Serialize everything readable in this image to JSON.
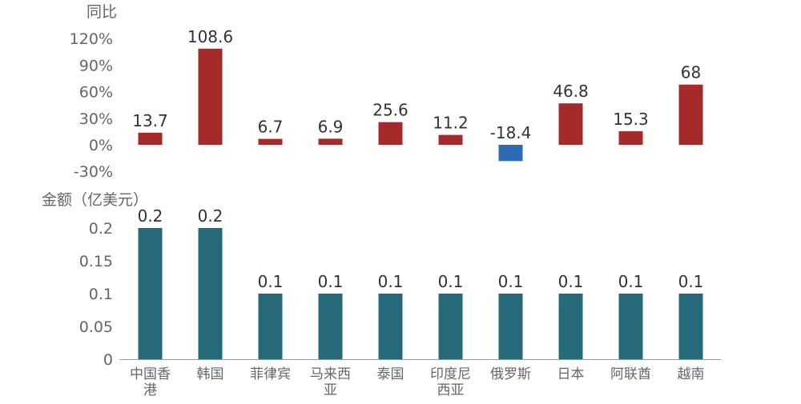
{
  "chart_data": [
    {
      "type": "bar",
      "ylabel": "同比",
      "categories": [
        "中国香港",
        "韩国",
        "菲律宾",
        "马来西亚",
        "泰国",
        "印度尼西亚",
        "俄罗斯",
        "日本",
        "阿联酋",
        "越南"
      ],
      "values": [
        13.7,
        108.6,
        6.7,
        6.9,
        25.6,
        11.2,
        -18.4,
        46.8,
        15.3,
        68
      ],
      "data_labels": [
        "13.7",
        "108.6",
        "6.7",
        "6.9",
        "25.6",
        "11.2",
        "-18.4",
        "46.8",
        "15.3",
        "68"
      ],
      "ylim": [
        -30,
        120
      ],
      "yticks": [
        -30,
        0,
        30,
        60,
        90,
        120
      ],
      "ytick_labels": [
        "-30%",
        "0%",
        "30%",
        "60%",
        "90%",
        "120%"
      ],
      "grid": false,
      "colors": {
        "positive": "#A52A2A",
        "negative": "#2E6BB5"
      }
    },
    {
      "type": "bar",
      "ylabel": "金额（亿美元）",
      "categories": [
        "中国香港",
        "韩国",
        "菲律宾",
        "马来西亚",
        "泰国",
        "印度尼西亚",
        "俄罗斯",
        "日本",
        "阿联酋",
        "越南"
      ],
      "category_lines": [
        [
          "中国香",
          "港"
        ],
        [
          "韩国"
        ],
        [
          "菲律宾"
        ],
        [
          "马来西",
          "亚"
        ],
        [
          "泰国"
        ],
        [
          "印度尼",
          "西亚"
        ],
        [
          "俄罗斯"
        ],
        [
          "日本"
        ],
        [
          "阿联酋"
        ],
        [
          "越南"
        ]
      ],
      "values": [
        0.2,
        0.2,
        0.1,
        0.1,
        0.1,
        0.1,
        0.1,
        0.1,
        0.1,
        0.1
      ],
      "data_labels": [
        "0.2",
        "0.2",
        "0.1",
        "0.1",
        "0.1",
        "0.1",
        "0.1",
        "0.1",
        "0.1",
        "0.1"
      ],
      "ylim": [
        0,
        0.2
      ],
      "yticks": [
        0,
        0.05,
        0.1,
        0.15,
        0.2
      ],
      "ytick_labels": [
        "0",
        "0.05",
        "0.1",
        "0.15",
        "0.2"
      ],
      "grid": false,
      "colors": {
        "bar": "#25697A",
        "axis": "#999999"
      }
    }
  ]
}
